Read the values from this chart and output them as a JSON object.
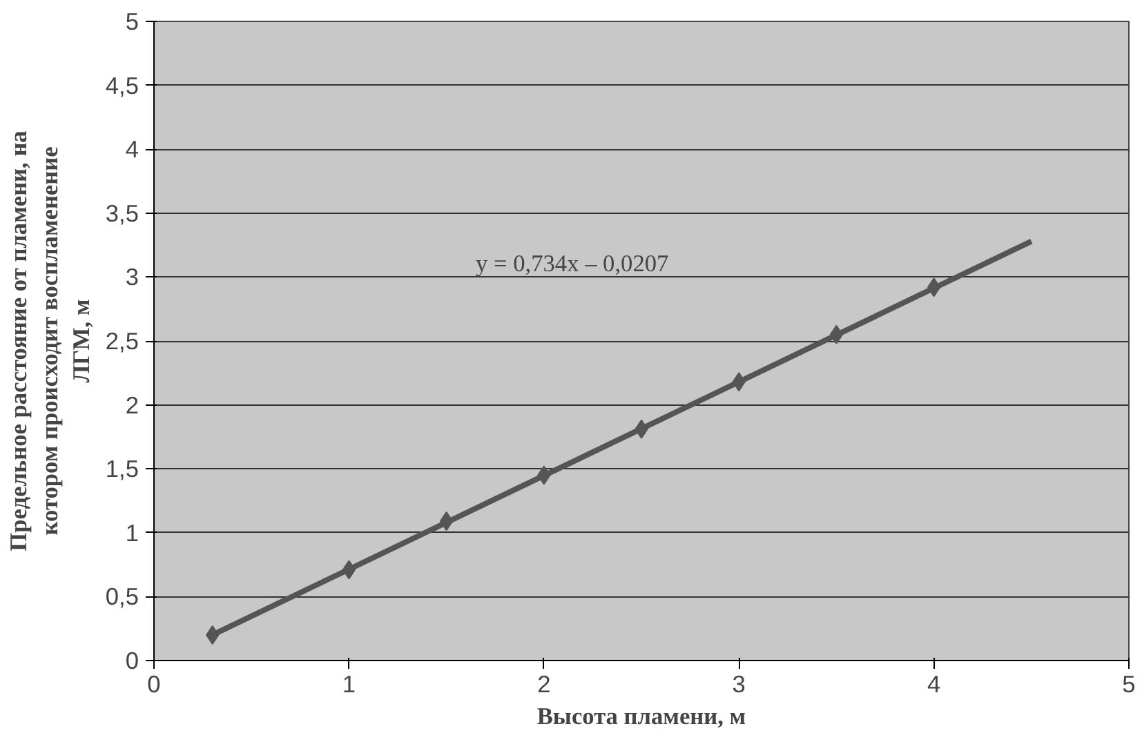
{
  "chart_data": {
    "type": "scatter",
    "xlabel": "Высота пламени, м",
    "ylabel": "Предельное расстояние от пламени, на котором происходит воспламенение ЛГМ, м",
    "annotations": [
      "y = 0,734x – 0,0207"
    ],
    "series": [
      {
        "type": "line",
        "marker": "none",
        "color": "#555555",
        "x": [
          0.3,
          4.5
        ],
        "values": [
          0.2,
          3.28
        ]
      },
      {
        "color": "#555555",
        "x": [
          0.3,
          1,
          1.5,
          2,
          2.5,
          3,
          3.5,
          4
        ],
        "values": [
          0.2,
          0.71,
          1.09,
          1.45,
          1.81,
          2.18,
          2.55,
          2.92
        ]
      }
    ],
    "marker": "diamond",
    "grid": "y",
    "xlim": [
      0,
      5
    ],
    "xticks": [
      0,
      1,
      2,
      3,
      4,
      5
    ],
    "ylim": [
      0,
      5
    ],
    "yticks": [
      0,
      {
        "value": 0.5,
        "label": "0,5"
      },
      1,
      {
        "value": 1.5,
        "label": "1,5"
      },
      2,
      {
        "value": 2.5,
        "label": "2,5"
      },
      3,
      {
        "value": 3.5,
        "label": "3,5"
      },
      4,
      {
        "value": 4.5,
        "label": "4,5"
      },
      5
    ]
  }
}
